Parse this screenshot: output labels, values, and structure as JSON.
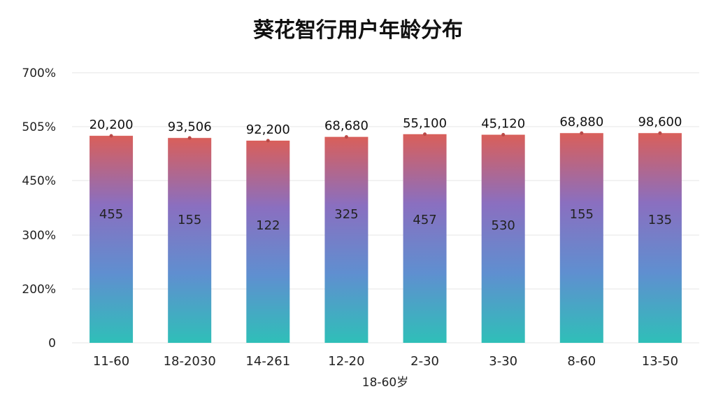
{
  "chart_data": {
    "type": "bar",
    "title": "葵花智行用户年龄分布",
    "xlabel": "18-60岁",
    "ylabel": "",
    "y_tick_labels": [
      "0",
      "200%",
      "300%",
      "450%",
      "505%",
      "700%"
    ],
    "categories": [
      "11-60",
      "18-2030",
      "14-261",
      "12-20",
      "2-30",
      "3-30",
      "8-60",
      "13-50"
    ],
    "values": [
      3.83,
      3.79,
      3.74,
      3.81,
      3.86,
      3.85,
      3.88,
      3.88
    ],
    "top_labels": [
      "20,200",
      "93,506",
      "92,200",
      "68,680",
      "55,100",
      "45,120",
      "68,880",
      "98,600"
    ],
    "mid_labels": [
      "455",
      "155",
      "122",
      "325",
      "457",
      "530",
      "155",
      "135"
    ],
    "bar_gradient": [
      "#d95f5a",
      "#8a6fc0",
      "#5f8fd0",
      "#2fbfb8"
    ],
    "grid": true,
    "legend": "none"
  }
}
